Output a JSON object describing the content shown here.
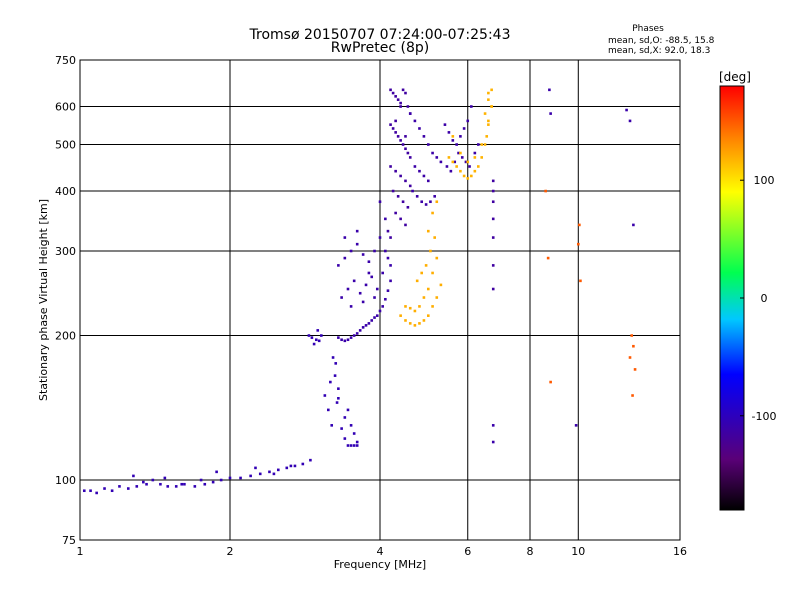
{
  "chart_data": {
    "type": "scatter",
    "title": "Tromsø 20150707 07:24:00-07:25:43",
    "subtitle": "RwPretec (8p)",
    "xlabel": "Frequency [MHz]",
    "ylabel": "Stationary phase Virtual Height [km]",
    "x_scale": "log",
    "y_scale": "log",
    "xlim": [
      1,
      16
    ],
    "ylim": [
      75,
      750
    ],
    "x_ticks": [
      1,
      2,
      4,
      6,
      8,
      10,
      16
    ],
    "x_tick_labels": [
      "1",
      "2",
      "4",
      "6",
      "8",
      "10",
      "16"
    ],
    "y_ticks": [
      75,
      100,
      200,
      300,
      400,
      500,
      600,
      750
    ],
    "y_tick_labels": [
      "75",
      "100",
      "200",
      "300",
      "400",
      "500",
      "600",
      "750"
    ],
    "grid": true,
    "stats": {
      "title": "Phases",
      "line_o": "mean, sd,O: -88.5, 15.8",
      "line_x": "mean, sd,X:  92.0, 18.3"
    },
    "colorbar": {
      "label": "[deg]",
      "range": [
        -180,
        180
      ],
      "ticks": [
        100,
        0,
        -100
      ],
      "tick_labels": [
        "100",
        "0",
        "-100"
      ]
    },
    "series": [
      {
        "phase_deg": -105,
        "x": [
          1.02,
          1.05,
          1.08,
          1.12,
          1.16,
          1.2,
          1.25,
          1.3,
          1.36,
          1.4,
          1.45,
          1.5,
          1.56,
          1.62,
          1.7,
          1.78,
          1.85,
          1.92,
          2.0,
          2.1,
          2.2,
          2.3,
          2.4,
          2.5,
          2.6,
          2.7,
          2.8,
          2.9,
          1.28,
          1.34,
          1.48,
          1.6,
          1.75,
          1.88,
          2.25,
          2.45,
          2.65
        ],
        "y": [
          95,
          95,
          94,
          96,
          95,
          97,
          96,
          97,
          98,
          100,
          98,
          97,
          97,
          98,
          97,
          98,
          99,
          100,
          101,
          101,
          102,
          103,
          104,
          105,
          106,
          107,
          108,
          110,
          102,
          99,
          101,
          98,
          100,
          104,
          106,
          103,
          107
        ]
      },
      {
        "phase_deg": -105,
        "x": [
          2.88,
          2.92,
          2.98,
          3.02,
          3.05,
          3.1,
          3.15,
          3.2,
          3.18,
          3.22,
          3.26,
          3.3,
          3.28,
          3.35,
          3.4,
          3.45,
          3.5,
          3.55,
          3.6,
          3.45,
          3.5,
          3.55,
          3.6,
          3.4,
          3.3,
          3.25,
          2.95,
          3.0
        ],
        "y": [
          200,
          198,
          196,
          195,
          200,
          150,
          140,
          130,
          160,
          180,
          175,
          155,
          145,
          128,
          122,
          118,
          118,
          118,
          118,
          140,
          130,
          125,
          120,
          135,
          148,
          165,
          192,
          205
        ]
      },
      {
        "phase_deg": -110,
        "x": [
          3.3,
          3.35,
          3.4,
          3.45,
          3.5,
          3.55,
          3.6,
          3.65,
          3.7,
          3.75,
          3.8,
          3.85,
          3.9,
          3.95,
          4.0,
          4.05,
          4.1,
          4.15,
          4.2,
          3.3,
          3.4,
          3.5,
          3.6,
          3.7,
          3.8,
          3.9,
          4.0,
          4.1,
          4.2,
          3.35,
          3.45,
          3.55,
          3.65,
          3.75,
          3.85,
          3.95,
          4.05,
          4.15,
          3.5,
          3.7,
          3.9,
          4.1,
          3.4,
          3.6,
          3.8,
          4.0
        ],
        "y": [
          198,
          196,
          195,
          196,
          198,
          200,
          202,
          205,
          208,
          210,
          212,
          215,
          218,
          220,
          225,
          230,
          238,
          248,
          260,
          280,
          290,
          300,
          310,
          295,
          285,
          300,
          320,
          300,
          280,
          240,
          250,
          260,
          245,
          255,
          265,
          250,
          270,
          290,
          230,
          235,
          240,
          350,
          320,
          330,
          270,
          380
        ]
      },
      {
        "phase_deg": -115,
        "x": [
          4.2,
          4.25,
          4.3,
          4.35,
          4.4,
          4.45,
          4.5,
          4.55,
          4.6,
          4.2,
          4.25,
          4.3,
          4.35,
          4.4,
          4.45,
          4.5,
          4.55,
          4.6,
          4.2,
          4.3,
          4.4,
          4.5,
          4.6,
          4.25,
          4.35,
          4.45,
          4.55,
          4.3,
          4.4,
          4.5,
          4.15,
          4.2,
          4.3,
          4.4,
          4.5
        ],
        "y": [
          650,
          640,
          630,
          620,
          610,
          650,
          640,
          600,
          580,
          550,
          540,
          530,
          520,
          510,
          500,
          490,
          480,
          470,
          450,
          440,
          430,
          420,
          410,
          400,
          390,
          380,
          370,
          360,
          350,
          340,
          330,
          320,
          560,
          600,
          520
        ]
      },
      {
        "phase_deg": -112,
        "x": [
          4.6,
          4.7,
          4.8,
          4.9,
          5.0,
          5.1,
          5.2,
          5.3,
          4.65,
          4.75,
          4.85,
          4.95,
          5.05,
          5.15,
          4.7,
          4.8,
          4.9,
          5.0,
          5.4,
          5.5,
          5.6,
          5.7,
          5.8,
          5.9,
          6.0,
          6.1,
          5.45,
          5.55,
          5.65,
          5.75,
          5.85,
          5.95,
          6.05,
          6.2,
          6.3
        ],
        "y": [
          580,
          560,
          540,
          520,
          500,
          480,
          470,
          460,
          400,
          390,
          380,
          375,
          380,
          390,
          450,
          440,
          430,
          420,
          550,
          530,
          510,
          500,
          520,
          540,
          560,
          600,
          450,
          440,
          460,
          480,
          470,
          460,
          450,
          480,
          500
        ]
      },
      {
        "phase_deg": 120,
        "x": [
          4.4,
          4.5,
          4.6,
          4.7,
          4.8,
          4.9,
          5.0,
          5.1,
          5.2,
          5.3,
          4.5,
          4.6,
          4.7,
          4.8,
          4.9,
          5.0,
          5.1,
          5.2,
          4.75,
          4.85,
          4.95,
          5.05,
          5.15,
          5.0,
          5.1,
          5.2
        ],
        "y": [
          220,
          215,
          212,
          210,
          212,
          215,
          220,
          230,
          240,
          255,
          230,
          228,
          225,
          230,
          240,
          250,
          270,
          290,
          260,
          270,
          280,
          300,
          320,
          330,
          360,
          380
        ]
      },
      {
        "phase_deg": 118,
        "x": [
          5.5,
          5.6,
          5.7,
          5.8,
          5.9,
          6.0,
          6.1,
          6.2,
          6.3,
          6.4,
          6.5,
          6.6,
          6.7,
          5.6,
          5.8,
          6.0,
          6.2,
          6.4,
          6.6,
          6.5,
          6.6,
          6.7,
          6.6,
          6.7,
          6.55
        ],
        "y": [
          470,
          460,
          450,
          440,
          430,
          425,
          430,
          440,
          450,
          470,
          500,
          550,
          600,
          520,
          480,
          460,
          470,
          500,
          560,
          580,
          620,
          650,
          640,
          600,
          520
        ]
      },
      {
        "phase_deg": -115,
        "x": [
          6.75,
          6.75,
          6.75,
          6.75,
          6.75,
          6.75,
          6.75
        ],
        "y": [
          420,
          400,
          380,
          350,
          320,
          280,
          250
        ]
      },
      {
        "phase_deg": 150,
        "x": [
          8.6,
          8.7,
          8.8,
          10.0,
          10.05,
          10.1,
          12.8,
          12.9,
          13.0,
          12.7,
          12.85
        ],
        "y": [
          400,
          290,
          160,
          310,
          340,
          260,
          200,
          190,
          170,
          180,
          150
        ]
      },
      {
        "phase_deg": -110,
        "x": [
          8.75,
          8.8,
          9.9,
          12.5,
          12.7,
          12.9,
          6.75,
          6.75
        ],
        "y": [
          650,
          580,
          130,
          590,
          560,
          340,
          130,
          120
        ]
      }
    ]
  }
}
